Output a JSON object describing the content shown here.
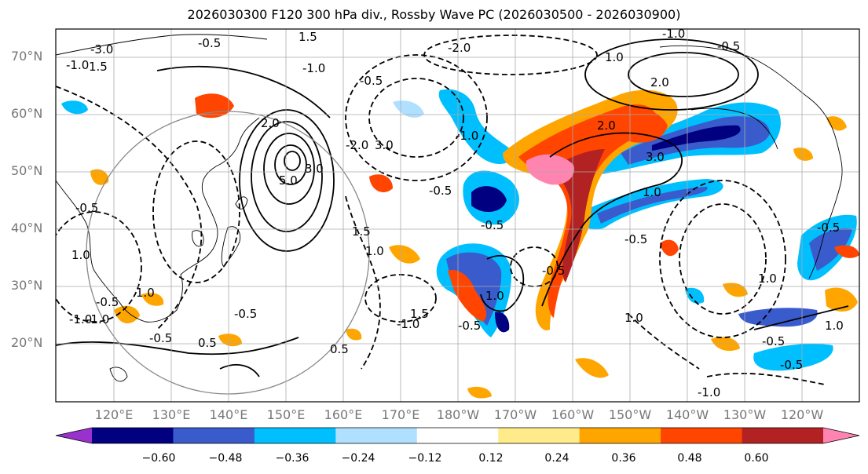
{
  "title": "2026030300 F120 300 hPa div., Rossby Wave PC (2026030500 - 2026030900)",
  "map": {
    "lat_labels": [
      "70°N",
      "60°N",
      "50°N",
      "40°N",
      "30°N",
      "20°N"
    ],
    "lon_labels": [
      "120°E",
      "130°E",
      "140°E",
      "150°E",
      "160°E",
      "170°E",
      "180°W",
      "170°W",
      "160°W",
      "150°W",
      "140°W",
      "130°W",
      "120°W"
    ],
    "contour_labels": [
      "-0.5",
      "1.5",
      "-1.0",
      "-3.0",
      "-1.0",
      "-0.5",
      "-2.0",
      "-1.0",
      "1.0",
      "2.0",
      "-0.5",
      "5.0",
      "3.0",
      "-2.0",
      "3.0",
      "-1.0",
      "-0.5",
      "1.0",
      "2.0",
      "-0.5",
      "1.5",
      "1.0",
      "-0.5",
      "-1.0",
      "-0.5",
      "1.0",
      "-0.5",
      "-0.5",
      "1.5",
      "-0.5",
      "0.5",
      "-1.0",
      "0.5",
      "1.0",
      "-0.5",
      "-0.5",
      "-1.0",
      "1.0",
      "1.0",
      "-0.5",
      "-0.5",
      "-1.0",
      "1.0",
      "-0.5",
      "1.5",
      "2.0",
      "3.0",
      "1.0"
    ]
  },
  "colorbar": {
    "tick_labels": [
      "−0.60",
      "−0.48",
      "−0.36",
      "−0.24",
      "−0.12",
      "0.12",
      "0.24",
      "0.36",
      "0.48",
      "0.60"
    ],
    "colors": [
      "#9932cc",
      "#000080",
      "#3a5bcc",
      "#00bfff",
      "#b0e0ff",
      "#ffffff",
      "#ffeb8a",
      "#ffa500",
      "#ff4500",
      "#b22222",
      "#ff85b0"
    ]
  },
  "colors": {
    "pink": "#ff85b0",
    "darkred": "#b22222",
    "orangered": "#ff4500",
    "orange": "#ffa500",
    "yellow": "#ffeb8a",
    "lightblue": "#b0e0ff",
    "skyblue": "#00bfff",
    "royal": "#3a5bcc",
    "navy": "#000080"
  }
}
